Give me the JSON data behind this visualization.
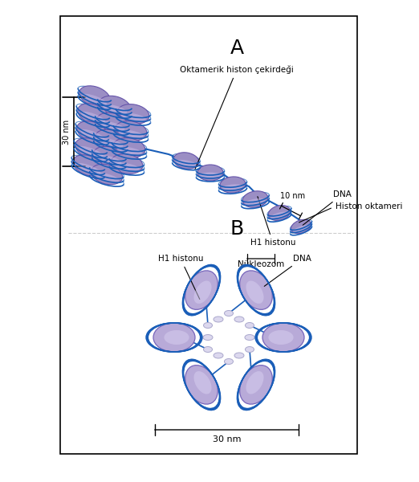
{
  "panel_a_label": "A",
  "panel_b_label": "B",
  "label_30nm_a": "30 nm",
  "label_10nm": "10 nm",
  "label_oktamerik": "Oktamerik histon çekirdeği",
  "label_dna_a": "DNA",
  "label_histon_oktameri": "Histon oktameri",
  "label_h1_histonu_a": "H1 histonu",
  "label_nukleozom": "Nükleozom",
  "label_h1_histonu_b": "H1 histonu",
  "label_dna_b": "DNA",
  "label_30nm_b": "30 nm",
  "histon_fill": "#9b8ec4",
  "histon_fill_light": "#b8aad8",
  "dna_color": "#1a5eb8",
  "center_color": "#dcd8ee",
  "bg_color": "#ffffff",
  "border_color": "#000000",
  "text_color": "#000000",
  "fig_width": 5.22,
  "fig_height": 6.0
}
